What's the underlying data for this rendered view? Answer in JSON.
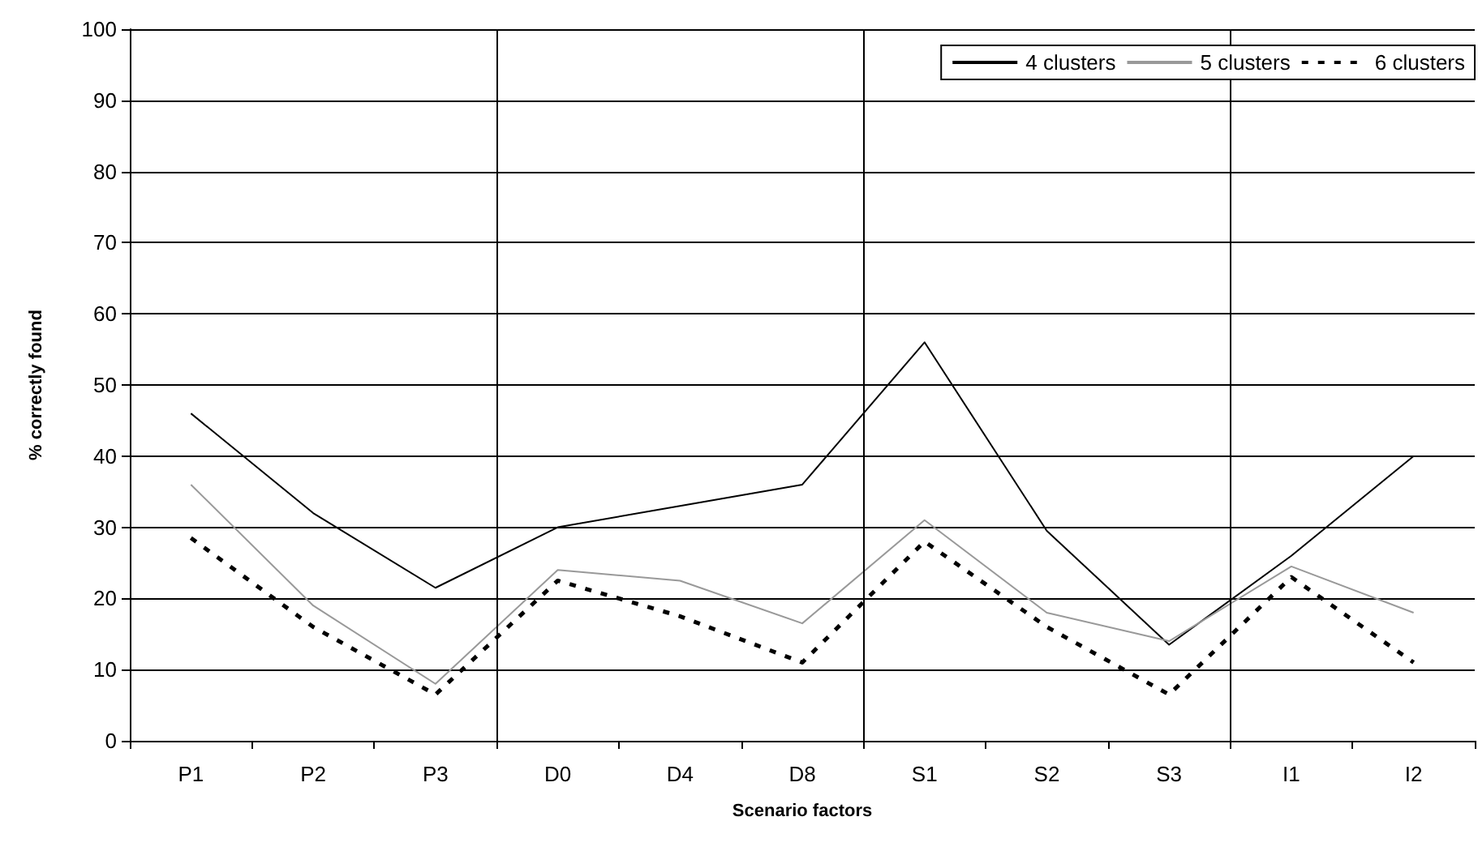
{
  "chart_data": {
    "type": "line",
    "xlabel": "Scenario factors",
    "ylabel": "% correctly found",
    "categories": [
      "P1",
      "P2",
      "P3",
      "D0",
      "D4",
      "D8",
      "S1",
      "S2",
      "S3",
      "I1",
      "I2"
    ],
    "series": [
      {
        "name": "4 clusters",
        "color": "#000000",
        "line_style": "solid",
        "values": [
          46,
          32,
          21.5,
          30,
          33,
          36,
          56,
          29.5,
          13.5,
          26,
          40
        ]
      },
      {
        "name": "5 clusters",
        "color": "#999999",
        "line_style": "solid",
        "values": [
          36,
          19,
          8,
          24,
          22.5,
          16.5,
          31,
          18,
          14,
          24.5,
          18
        ]
      },
      {
        "name": "6 clusters",
        "color": "#000000",
        "line_style": "dashed",
        "values": [
          28.5,
          16,
          6.5,
          22.5,
          17.5,
          11,
          28,
          16,
          6.5,
          23,
          11
        ]
      }
    ],
    "ylim": [
      0,
      100
    ],
    "yticks": [
      0,
      10,
      20,
      30,
      40,
      50,
      60,
      70,
      80,
      90,
      100
    ],
    "grid": "y",
    "legend": "top right",
    "marker": "none"
  }
}
